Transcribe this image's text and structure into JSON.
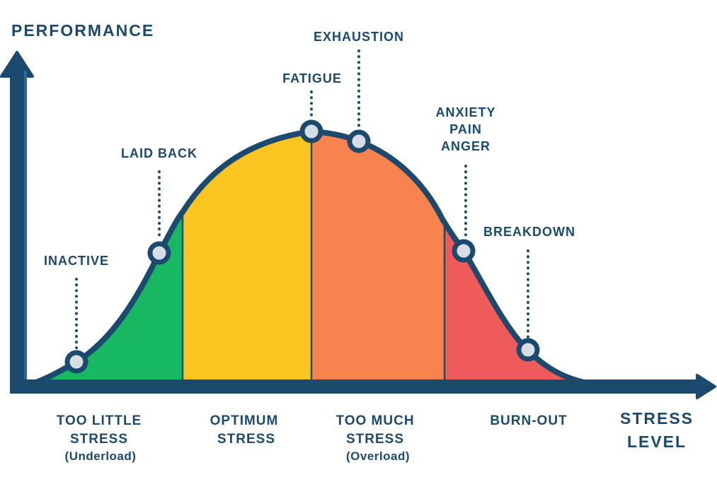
{
  "axes": {
    "y_label": "PERFORMANCE",
    "x_label_line1": "STRESS",
    "x_label_line2": "LEVEL"
  },
  "points": {
    "inactive": "INACTIVE",
    "laid_back": "LAID BACK",
    "fatigue": "FATIGUE",
    "exhaustion": "EXHAUSTION",
    "anxiety": [
      "ANXIETY",
      "PAIN",
      "ANGER"
    ],
    "breakdown": "BREAKDOWN"
  },
  "zones": [
    {
      "line1": "TOO LITTLE",
      "line2": "STRESS",
      "sub": "(Underload)",
      "color": "#16b862"
    },
    {
      "line1": "OPTIMUM",
      "line2": "STRESS",
      "sub": "",
      "color": "#fbc520"
    },
    {
      "line1": "TOO MUCH",
      "line2": "STRESS",
      "sub": "(Overload)",
      "color": "#f7834f"
    },
    {
      "line1": "BURN-OUT",
      "line2": "",
      "sub": "",
      "color": "#ef5a5a"
    }
  ],
  "colors": {
    "navy": "#1b4a6e",
    "marker": "#d6dde5"
  }
}
